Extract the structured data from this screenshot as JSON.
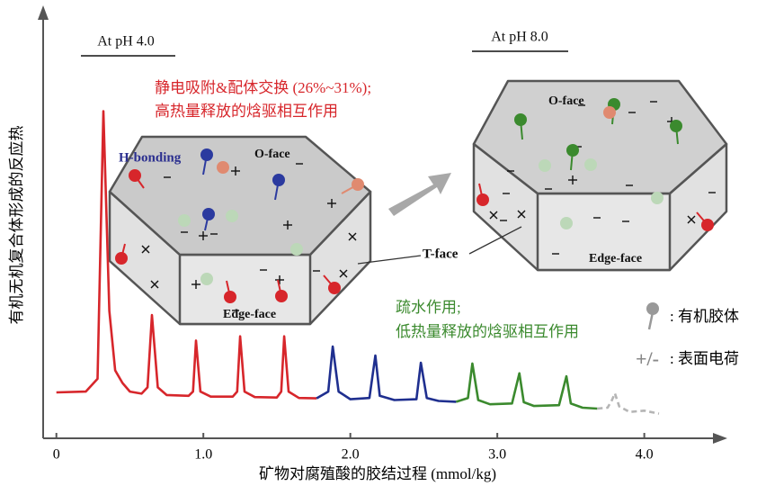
{
  "chart_data": {
    "type": "line",
    "y_label": "有机无机复合体形成的反应热",
    "x_label": "矿物对腐殖酸的胶结过程 (mmol/kg)",
    "xlim": [
      -0.09,
      4.51
    ],
    "ylim": [
      0,
      100
    ],
    "xticks": [
      0,
      {
        "value": 1,
        "label": "1.0"
      },
      {
        "value": 2,
        "label": "2.0"
      },
      {
        "value": 3,
        "label": "3.0"
      },
      {
        "value": 4,
        "label": "4.0"
      }
    ],
    "series": [
      {
        "color": "#d7262b",
        "dashed": false,
        "x": [
          0.0,
          0.2,
          0.28,
          0.32,
          0.36,
          0.4,
          0.45,
          0.5,
          0.58,
          0.62,
          0.65,
          0.69,
          0.75,
          0.9,
          0.93,
          0.95,
          0.98,
          1.05,
          1.2,
          1.23,
          1.25,
          1.28,
          1.35,
          1.5,
          1.53,
          1.55,
          1.58,
          1.65,
          1.77
        ],
        "values": [
          10.8,
          11,
          14,
          77,
          30,
          16,
          13,
          11,
          10.5,
          12,
          29,
          12,
          10.2,
          10,
          11,
          23,
          11,
          9.8,
          9.8,
          11,
          24,
          11,
          9.7,
          9.6,
          11,
          24,
          11,
          9.5,
          9.4
        ]
      },
      {
        "color": "#1f2f8f",
        "dashed": false,
        "x": [
          1.77,
          1.85,
          1.88,
          1.92,
          2.0,
          2.13,
          2.17,
          2.2,
          2.3,
          2.45,
          2.48,
          2.52,
          2.6,
          2.72
        ],
        "values": [
          9.4,
          11,
          21.6,
          11,
          9.2,
          9.5,
          19.5,
          10,
          9,
          9.2,
          17.8,
          9.5,
          8.8,
          8.6
        ]
      },
      {
        "color": "#3b8a2e",
        "dashed": false,
        "x": [
          2.72,
          2.8,
          2.83,
          2.87,
          2.95,
          3.1,
          3.15,
          3.18,
          3.25,
          3.42,
          3.47,
          3.5,
          3.58,
          3.68
        ],
        "values": [
          8.6,
          9.5,
          17.6,
          9,
          8,
          8.2,
          15.3,
          8.5,
          7.6,
          7.8,
          14.6,
          8.2,
          7.2,
          7
        ]
      },
      {
        "color": "#b5b5b5",
        "dashed": true,
        "x": [
          3.68,
          3.75,
          3.78,
          3.8,
          3.83,
          3.9,
          4.0,
          4.1
        ],
        "values": [
          7,
          7.2,
          9,
          10.6,
          7.5,
          6.2,
          6.5,
          5.8
        ]
      }
    ],
    "annotations": [
      "At pH 4.0",
      "At pH 8.0",
      "静电吸附&配体交换 (26%~31%);",
      "高热量释放的焓驱相互作用",
      "H-bonding",
      "O-face",
      "Edge-face",
      "O-face",
      "Edge-face",
      "T-face",
      "疏水作用;",
      "低热量释放的焓驱相互作用"
    ],
    "legend": {
      "colloid": ": 有机胶体",
      "charge_symbol": "+/-",
      "charge": ": 表面电荷"
    }
  }
}
